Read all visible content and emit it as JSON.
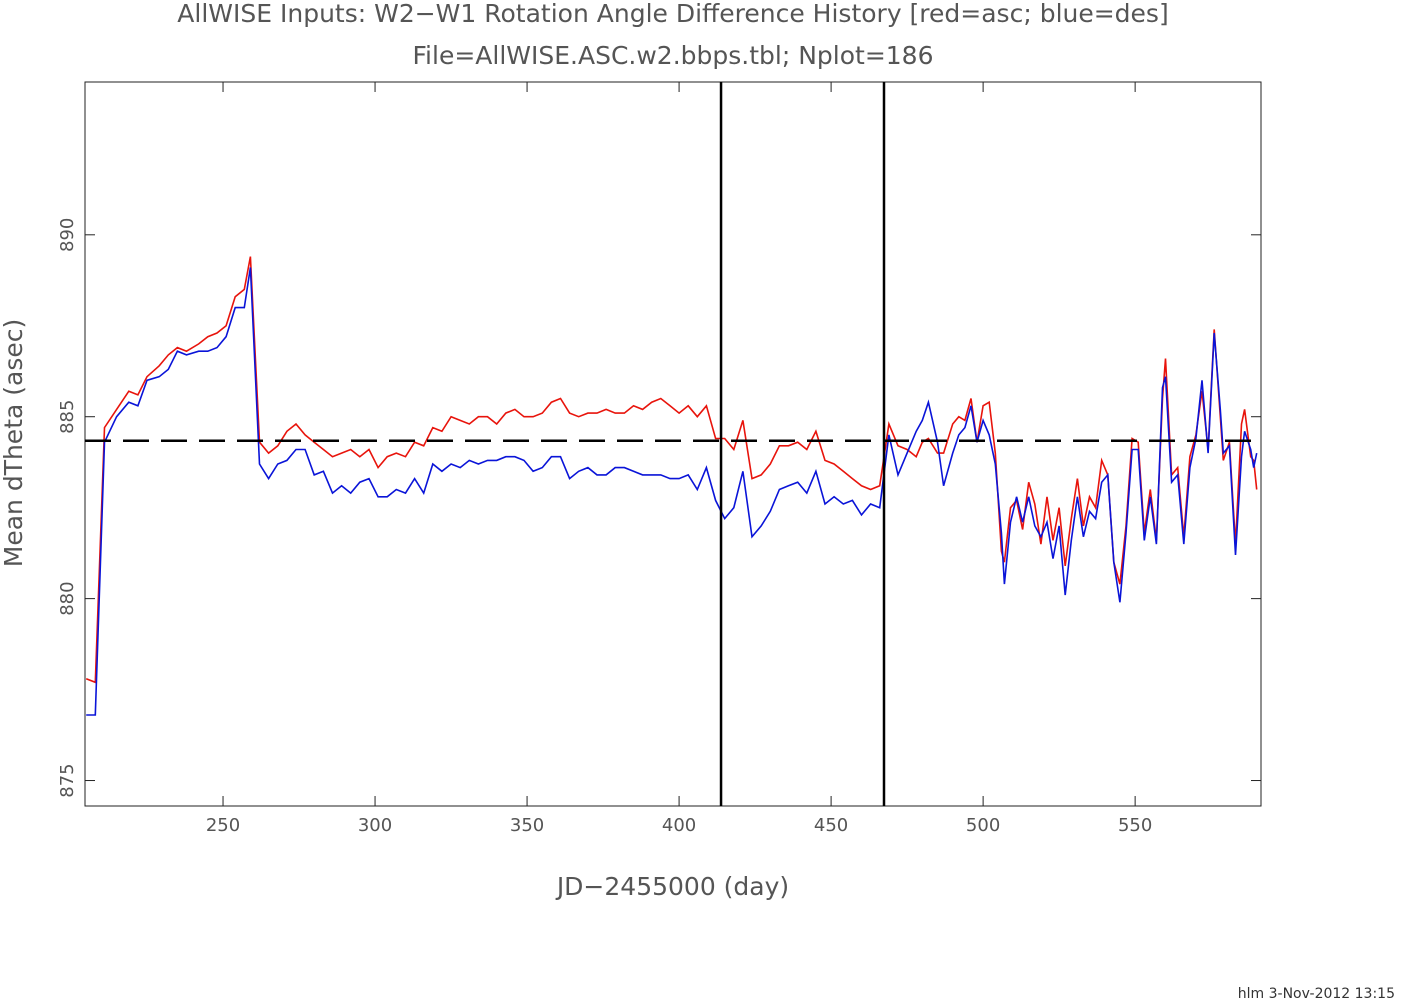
{
  "chart_data": {
    "type": "line",
    "title": "AllWISE Inputs: W2−W1 Rotation Angle Difference History [red=asc; blue=des]",
    "subtitle": "File=AllWISE.ASC.w2.bbps.tbl; Nplot=186",
    "x_label": "JD−2455000 (day)",
    "y_label": "Mean dTheta (asec)",
    "footer": "hlm   3-Nov-2012 13:15",
    "xlim": [
      204.6,
      591.4
    ],
    "ylim": [
      874.3,
      894.2
    ],
    "xticks": [
      250,
      300,
      350,
      400,
      450,
      500,
      550
    ],
    "yticks": [
      875,
      880,
      885,
      890
    ],
    "vertical_lines": [
      413.8,
      467.4
    ],
    "horizontal_line": 884.34,
    "x": [
      205,
      208,
      211,
      215,
      219,
      222,
      225,
      229,
      232,
      235,
      238,
      242,
      245,
      248,
      251,
      254,
      257,
      259,
      262,
      265,
      268,
      271,
      274,
      277,
      280,
      283,
      286,
      289,
      292,
      295,
      298,
      301,
      304,
      307,
      310,
      313,
      316,
      319,
      322,
      325,
      328,
      331,
      334,
      337,
      340,
      343,
      346,
      349,
      352,
      355,
      358,
      361,
      364,
      367,
      370,
      373,
      376,
      379,
      382,
      385,
      388,
      391,
      394,
      397,
      400,
      403,
      406,
      409,
      412,
      415,
      418,
      421,
      424,
      427,
      430,
      433,
      436,
      439,
      442,
      445,
      448,
      451,
      454,
      457,
      460,
      463,
      466,
      469,
      472,
      475,
      478,
      480,
      482,
      485,
      487,
      490,
      492,
      494,
      496,
      498,
      500,
      502,
      504,
      506,
      507,
      509,
      511,
      513,
      515,
      517,
      519,
      521,
      523,
      525,
      527,
      529,
      531,
      533,
      535,
      537,
      539,
      541,
      543,
      545,
      547,
      549,
      551,
      553,
      555,
      557,
      559,
      560,
      562,
      564,
      566,
      568,
      570,
      572,
      574,
      576,
      578,
      579,
      581,
      583,
      585,
      586,
      588,
      589,
      590
    ],
    "series": [
      {
        "name": "asc",
        "color": "#e8140c",
        "values": [
          877.8,
          877.7,
          884.7,
          885.2,
          885.7,
          885.6,
          886.1,
          886.4,
          886.7,
          886.9,
          886.8,
          887.0,
          887.2,
          887.3,
          887.5,
          888.3,
          888.5,
          889.4,
          884.3,
          884.0,
          884.2,
          884.6,
          884.8,
          884.5,
          884.3,
          884.1,
          883.9,
          884.0,
          884.1,
          883.9,
          884.1,
          883.6,
          883.9,
          884.0,
          883.9,
          884.3,
          884.2,
          884.7,
          884.6,
          885.0,
          884.9,
          884.8,
          885.0,
          885.0,
          884.8,
          885.1,
          885.2,
          885.0,
          885.0,
          885.1,
          885.4,
          885.5,
          885.1,
          885.0,
          885.1,
          885.1,
          885.2,
          885.1,
          885.1,
          885.3,
          885.2,
          885.4,
          885.5,
          885.3,
          885.1,
          885.3,
          885.0,
          885.3,
          884.4,
          884.4,
          884.1,
          884.9,
          883.3,
          883.4,
          883.7,
          884.2,
          884.2,
          884.3,
          884.1,
          884.6,
          883.8,
          883.7,
          883.5,
          883.3,
          883.1,
          883.0,
          883.1,
          884.8,
          884.2,
          884.1,
          883.9,
          884.3,
          884.4,
          884.0,
          884.0,
          884.8,
          885.0,
          884.9,
          885.5,
          884.3,
          885.3,
          885.4,
          884.0,
          881.3,
          881.0,
          882.5,
          882.7,
          881.9,
          883.2,
          882.6,
          881.5,
          882.8,
          881.6,
          882.5,
          880.9,
          882.2,
          883.3,
          882.0,
          882.8,
          882.5,
          883.8,
          883.4,
          881.0,
          880.4,
          882.0,
          884.4,
          884.3,
          881.8,
          883.0,
          881.6,
          885.5,
          886.6,
          883.4,
          883.6,
          881.7,
          883.9,
          884.5,
          885.7,
          884.1,
          887.4,
          885.0,
          883.8,
          884.3,
          881.5,
          884.8,
          885.2,
          883.9,
          883.8,
          883.0
        ]
      },
      {
        "name": "des",
        "color": "#0a14d8",
        "values": [
          876.8,
          876.8,
          884.3,
          885.0,
          885.4,
          885.3,
          886.0,
          886.1,
          886.3,
          886.8,
          886.7,
          886.8,
          886.8,
          886.9,
          887.2,
          888.0,
          888.0,
          889.1,
          883.7,
          883.3,
          883.7,
          883.8,
          884.1,
          884.1,
          883.4,
          883.5,
          882.9,
          883.1,
          882.9,
          883.2,
          883.3,
          882.8,
          882.8,
          883.0,
          882.9,
          883.3,
          882.9,
          883.7,
          883.5,
          883.7,
          883.6,
          883.8,
          883.7,
          883.8,
          883.8,
          883.9,
          883.9,
          883.8,
          883.5,
          883.6,
          883.9,
          883.9,
          883.3,
          883.5,
          883.6,
          883.4,
          883.4,
          883.6,
          883.6,
          883.5,
          883.4,
          883.4,
          883.4,
          883.3,
          883.3,
          883.4,
          883.0,
          883.6,
          882.7,
          882.2,
          882.5,
          883.5,
          881.7,
          882.0,
          882.4,
          883.0,
          883.1,
          883.2,
          882.9,
          883.5,
          882.6,
          882.8,
          882.6,
          882.7,
          882.3,
          882.6,
          882.5,
          884.5,
          883.4,
          884.0,
          884.6,
          884.9,
          885.4,
          884.3,
          883.1,
          884.0,
          884.5,
          884.7,
          885.3,
          884.3,
          884.9,
          884.5,
          883.7,
          881.8,
          880.4,
          882.1,
          882.8,
          882.1,
          882.8,
          882.0,
          881.7,
          882.1,
          881.1,
          882.0,
          880.1,
          881.6,
          882.8,
          881.7,
          882.4,
          882.2,
          883.2,
          883.4,
          881.0,
          879.9,
          881.8,
          884.1,
          884.1,
          881.6,
          882.8,
          881.5,
          885.8,
          886.1,
          883.2,
          883.4,
          881.5,
          883.6,
          884.4,
          886.0,
          884.0,
          887.3,
          885.2,
          884.0,
          884.2,
          881.2,
          883.9,
          884.6,
          884.1,
          883.6,
          884.0
        ]
      }
    ]
  }
}
